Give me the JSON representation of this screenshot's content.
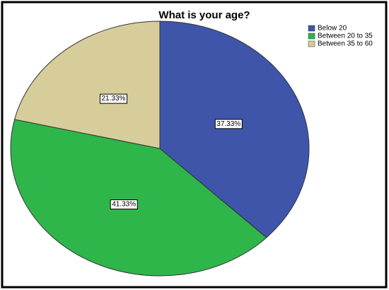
{
  "chart_data": {
    "type": "pie",
    "title": "What is your age?",
    "categories": [
      "Below 20",
      "Between 20 to 35",
      "Between 35 to 60"
    ],
    "values": [
      37.33,
      41.33,
      21.33
    ],
    "value_labels": [
      "37.33%",
      "41.33%",
      "21.33%"
    ],
    "colors": [
      "#3f55a9",
      "#2fb64a",
      "#d6cd9a"
    ]
  }
}
